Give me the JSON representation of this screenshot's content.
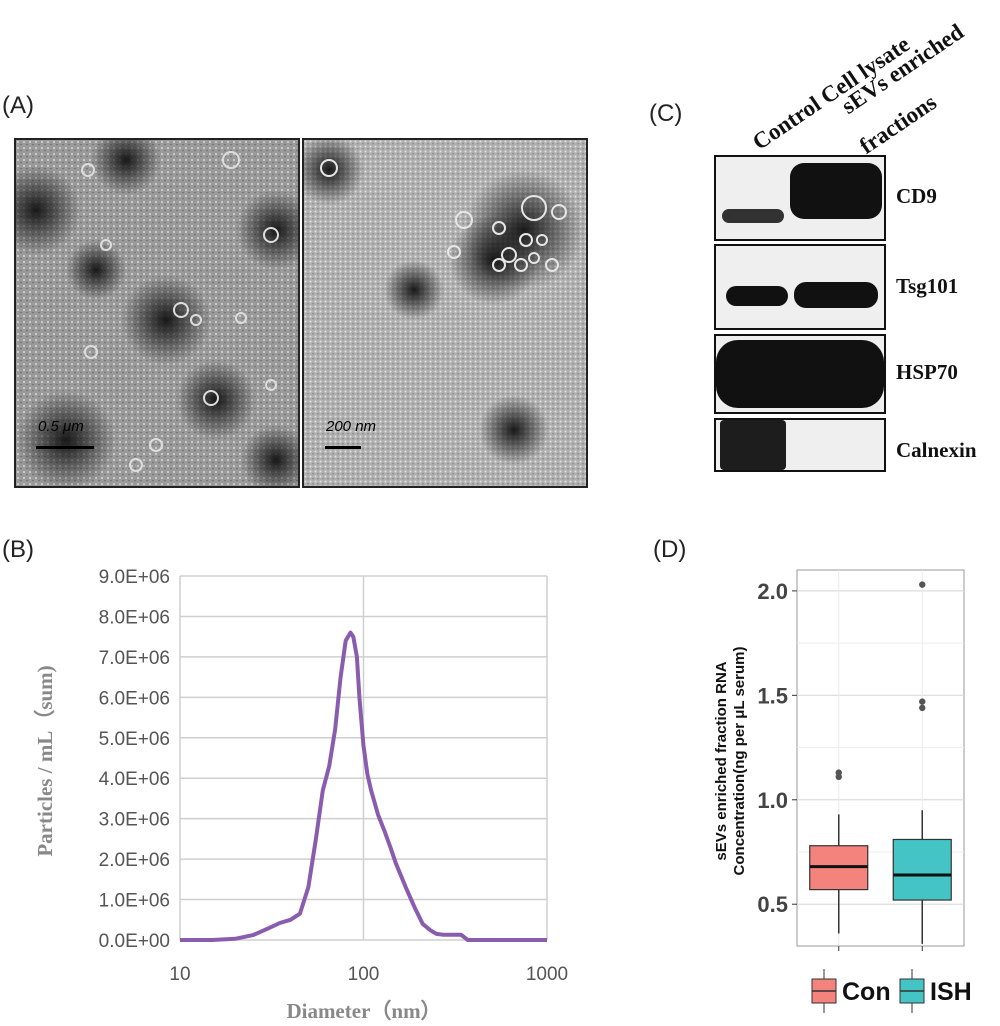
{
  "panels": {
    "a_label": "(A)",
    "b_label": "(B)",
    "c_label": "(C)",
    "d_label": "(D)"
  },
  "panel_a": {
    "scale_left": "0.5 μm",
    "scale_right": "200 nm"
  },
  "panel_c": {
    "lane_headers": [
      "Control Cell  lysate",
      "sEVs enriched",
      "fractions"
    ],
    "rows": [
      {
        "label": "CD9"
      },
      {
        "label": "Tsg101"
      },
      {
        "label": "HSP70"
      },
      {
        "label": "Calnexin"
      }
    ]
  },
  "chart_data": [
    {
      "type": "line",
      "panel": "B",
      "xlabel": "Diameter（nm）",
      "ylabel": "Particles / mL（sum)",
      "x_scale": "log",
      "xlim": [
        10,
        1000
      ],
      "ylim": [
        0,
        9000000
      ],
      "x_ticks": [
        "10",
        "100",
        "1000"
      ],
      "y_ticks": [
        "0.0E+00",
        "1.0E+06",
        "2.0E+06",
        "3.0E+06",
        "4.0E+06",
        "5.0E+06",
        "6.0E+06",
        "7.0E+06",
        "8.0E+06",
        "9.0E+06"
      ],
      "grid": true,
      "series_color": "#8a5cad",
      "x": [
        10,
        15,
        20,
        25,
        30,
        35,
        40,
        45,
        50,
        55,
        60,
        65,
        70,
        75,
        80,
        85,
        88,
        92,
        95,
        100,
        105,
        110,
        115,
        120,
        130,
        140,
        150,
        170,
        190,
        210,
        230,
        250,
        270,
        300,
        340,
        370,
        400,
        500,
        700,
        1000
      ],
      "values": [
        0,
        0,
        30000,
        120000,
        280000,
        420000,
        500000,
        650000,
        1300000,
        2500000,
        3700000,
        4300000,
        5200000,
        6500000,
        7400000,
        7600000,
        7500000,
        7000000,
        6000000,
        4800000,
        4100000,
        3700000,
        3400000,
        3100000,
        2700000,
        2300000,
        1900000,
        1300000,
        800000,
        400000,
        250000,
        150000,
        130000,
        130000,
        130000,
        0,
        0,
        0,
        0,
        0
      ]
    },
    {
      "type": "box",
      "panel": "D",
      "ylabel_lines": [
        "sEVs enriched fraction RNA",
        "Concentration(ng per μL serum)"
      ],
      "ylim": [
        0.3,
        2.1
      ],
      "y_ticks": [
        0.5,
        1.0,
        1.5,
        2.0
      ],
      "y_tick_labels": [
        "0.5",
        "1.0",
        "1.5",
        "2.0"
      ],
      "grid": true,
      "legend_position": "bottom",
      "series": [
        {
          "name": "Con",
          "color": "#f4837d",
          "whisker_low": 0.36,
          "q1": 0.57,
          "median": 0.68,
          "q3": 0.78,
          "whisker_high": 0.93,
          "outliers": [
            1.11,
            1.13
          ]
        },
        {
          "name": "ISH",
          "color": "#45c4c6",
          "whisker_low": 0.31,
          "q1": 0.52,
          "median": 0.64,
          "q3": 0.81,
          "whisker_high": 0.95,
          "outliers": [
            1.44,
            1.47,
            2.03
          ]
        }
      ]
    }
  ]
}
